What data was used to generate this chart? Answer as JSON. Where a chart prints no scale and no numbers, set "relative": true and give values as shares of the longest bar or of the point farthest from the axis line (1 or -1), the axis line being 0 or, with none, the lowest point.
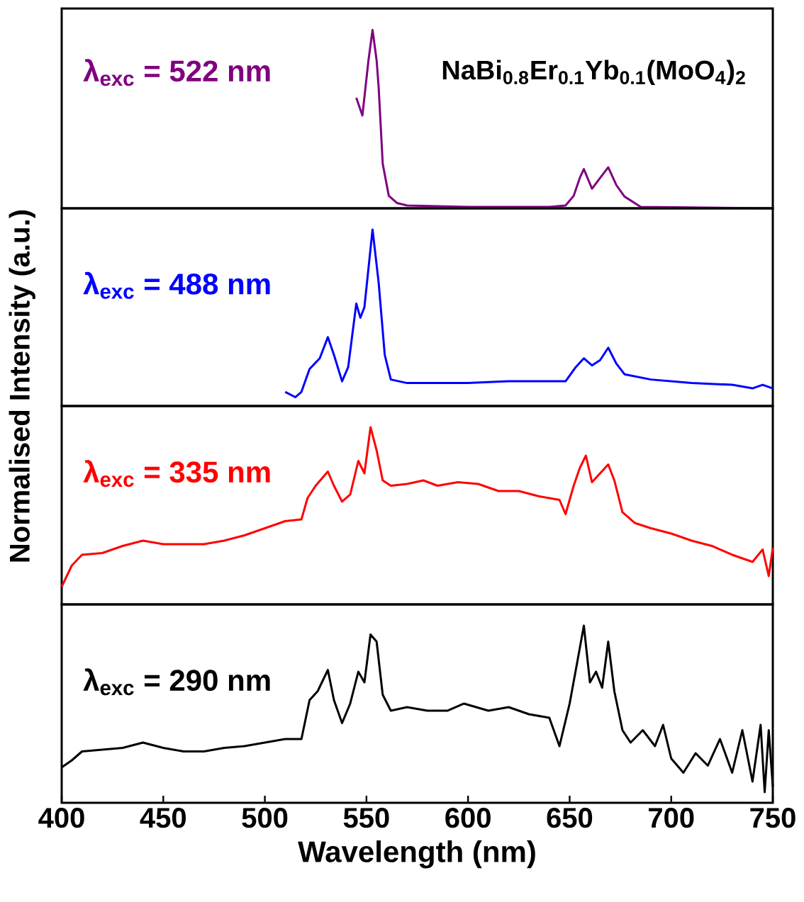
{
  "chart_data": [
    {
      "type": "line",
      "title": "NaBi$_{0.8}$Er$_{0.1}$Yb$_{0.1}$(MoO$_{4}$)$_{2}$",
      "annotations": [
        "λ$_{exc}$ = 522 nm"
      ],
      "relative": true,
      "xlim": [
        400,
        750
      ],
      "tick_labels": false,
      "series": [
        {
          "color": "#800080",
          "x": [
            545,
            548,
            551,
            553,
            555,
            556,
            558,
            561,
            565,
            570,
            600,
            640,
            648,
            652,
            655,
            657,
            661,
            665,
            669,
            673,
            677,
            685,
            750
          ],
          "values": [
            0.62,
            0.52,
            0.83,
            1,
            0.83,
            0.68,
            0.25,
            0.07,
            0.03,
            0.016,
            0.008,
            0.008,
            0.016,
            0.07,
            0.17,
            0.22,
            0.11,
            0.17,
            0.23,
            0.13,
            0.066,
            0.008,
            0
          ]
        }
      ]
    },
    {
      "type": "line",
      "ylabel": "Normalised Intensity (a.u.)",
      "annotations": [
        "λ$_{exc}$ = 488 nm"
      ],
      "relative": true,
      "xlim": [
        400,
        750
      ],
      "tick_labels": false,
      "series": [
        {
          "color": "#0000ff",
          "x": [
            510,
            515,
            518,
            522,
            527,
            531,
            534,
            538,
            541,
            545,
            547,
            549,
            553,
            556,
            559,
            562,
            570,
            600,
            620,
            648,
            653,
            657,
            661,
            665,
            669,
            673,
            677,
            690,
            710,
            730,
            740,
            745,
            750
          ],
          "values": [
            0.08,
            0.05,
            0.08,
            0.21,
            0.27,
            0.39,
            0.29,
            0.14,
            0.22,
            0.58,
            0.5,
            0.56,
            1,
            0.7,
            0.29,
            0.15,
            0.13,
            0.13,
            0.14,
            0.14,
            0.22,
            0.27,
            0.23,
            0.26,
            0.33,
            0.24,
            0.18,
            0.15,
            0.13,
            0.12,
            0.1,
            0.12,
            0.1
          ]
        }
      ]
    },
    {
      "type": "line",
      "annotations": [
        "λ$_{exc}$ = 335 nm"
      ],
      "relative": true,
      "xlim": [
        400,
        750
      ],
      "tick_labels": false,
      "series": [
        {
          "color": "#ff0000",
          "x": [
            400,
            405,
            410,
            420,
            430,
            440,
            450,
            460,
            470,
            480,
            490,
            500,
            510,
            518,
            521,
            525,
            531,
            534,
            538,
            542,
            546,
            549,
            552,
            555,
            558,
            562,
            570,
            578,
            585,
            595,
            605,
            615,
            625,
            635,
            645,
            648,
            652,
            655,
            658,
            661,
            665,
            669,
            672,
            676,
            682,
            690,
            700,
            710,
            720,
            730,
            740,
            745,
            748,
            750
          ],
          "values": [
            0.1,
            0.22,
            0.28,
            0.29,
            0.33,
            0.36,
            0.34,
            0.34,
            0.34,
            0.36,
            0.39,
            0.43,
            0.47,
            0.48,
            0.6,
            0.67,
            0.75,
            0.67,
            0.58,
            0.62,
            0.81,
            0.74,
            1,
            0.87,
            0.7,
            0.67,
            0.68,
            0.7,
            0.67,
            0.69,
            0.68,
            0.64,
            0.64,
            0.61,
            0.59,
            0.51,
            0.67,
            0.77,
            0.84,
            0.69,
            0.74,
            0.79,
            0.7,
            0.52,
            0.46,
            0.43,
            0.4,
            0.36,
            0.33,
            0.28,
            0.24,
            0.31,
            0.16,
            0.32
          ]
        }
      ]
    },
    {
      "type": "line",
      "xlabel": "Wavelength (nm)",
      "annotations": [
        "λ$_{exc}$ = 290 nm"
      ],
      "relative": true,
      "xlim": [
        400,
        750
      ],
      "xticks": [
        400,
        450,
        500,
        550,
        600,
        650,
        700,
        750
      ],
      "tick_labels": "x",
      "series": [
        {
          "color": "#000000",
          "x": [
            400,
            405,
            410,
            420,
            430,
            440,
            450,
            460,
            470,
            480,
            490,
            500,
            510,
            518,
            522,
            526,
            531,
            534,
            538,
            542,
            546,
            549,
            552,
            555,
            558,
            562,
            570,
            580,
            590,
            598,
            610,
            620,
            630,
            640,
            645,
            650,
            654,
            657,
            660,
            663,
            666,
            669,
            672,
            676,
            680,
            686,
            692,
            696,
            700,
            706,
            712,
            718,
            724,
            730,
            735,
            740,
            744,
            746,
            748,
            750
          ],
          "values": [
            0.2,
            0.24,
            0.29,
            0.3,
            0.31,
            0.34,
            0.31,
            0.29,
            0.29,
            0.31,
            0.32,
            0.34,
            0.36,
            0.36,
            0.58,
            0.63,
            0.75,
            0.58,
            0.45,
            0.56,
            0.74,
            0.68,
            0.95,
            0.91,
            0.61,
            0.52,
            0.54,
            0.52,
            0.52,
            0.56,
            0.52,
            0.54,
            0.5,
            0.48,
            0.32,
            0.56,
            0.81,
            1,
            0.68,
            0.74,
            0.65,
            0.91,
            0.63,
            0.41,
            0.34,
            0.41,
            0.32,
            0.44,
            0.25,
            0.17,
            0.28,
            0.21,
            0.36,
            0.17,
            0.41,
            0.12,
            0.44,
            0.06,
            0.41,
            0.09
          ]
        }
      ]
    }
  ]
}
